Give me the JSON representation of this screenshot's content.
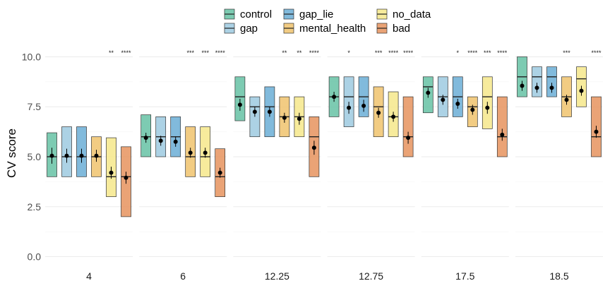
{
  "chart_data": {
    "type": "boxplot",
    "ylabel": "CV score",
    "ylim": [
      -0.3,
      10.3
    ],
    "yticks": [
      0,
      2.5,
      5,
      7.5,
      10
    ],
    "ytick_labels": [
      "0.0",
      "2.5",
      "5.0",
      "7.5",
      "10.0"
    ],
    "legend": {
      "position": "top"
    },
    "series": [
      {
        "name": "control",
        "color": "#66C2A5"
      },
      {
        "name": "gap",
        "color": "#9ECAE1"
      },
      {
        "name": "gap_lie",
        "color": "#6BAED6"
      },
      {
        "name": "mental_health",
        "color": "#F0C36D"
      },
      {
        "name": "no_data",
        "color": "#F6E88B"
      },
      {
        "name": "bad",
        "color": "#E6935E"
      }
    ],
    "facets": [
      {
        "label": "4",
        "boxes": [
          {
            "q1": 4.0,
            "median": 5.0,
            "q3": 6.2,
            "mean": 5.05,
            "ci": [
              4.65,
              5.45
            ],
            "sig": ""
          },
          {
            "q1": 4.0,
            "median": 5.0,
            "q3": 6.5,
            "mean": 5.05,
            "ci": [
              4.7,
              5.4
            ],
            "sig": ""
          },
          {
            "q1": 4.0,
            "median": 5.0,
            "q3": 6.5,
            "mean": 5.05,
            "ci": [
              4.7,
              5.4
            ],
            "sig": ""
          },
          {
            "q1": 4.0,
            "median": 5.0,
            "q3": 6.0,
            "mean": 5.05,
            "ci": [
              4.75,
              5.35
            ],
            "sig": ""
          },
          {
            "q1": 3.0,
            "median": 4.0,
            "q3": 5.95,
            "mean": 4.2,
            "ci": [
              3.9,
              4.5
            ],
            "sig": "**"
          },
          {
            "q1": 2.0,
            "median": 4.0,
            "q3": 5.5,
            "mean": 3.95,
            "ci": [
              3.65,
              4.25
            ],
            "sig": "****"
          }
        ]
      },
      {
        "label": "6",
        "boxes": [
          {
            "q1": 5.0,
            "median": 6.0,
            "q3": 7.1,
            "mean": 5.95,
            "ci": [
              5.7,
              6.2
            ],
            "sig": ""
          },
          {
            "q1": 5.0,
            "median": 6.0,
            "q3": 7.0,
            "mean": 5.8,
            "ci": [
              5.55,
              6.05
            ],
            "sig": ""
          },
          {
            "q1": 5.0,
            "median": 6.0,
            "q3": 7.0,
            "mean": 5.75,
            "ci": [
              5.5,
              6.0
            ],
            "sig": ""
          },
          {
            "q1": 4.0,
            "median": 5.0,
            "q3": 6.5,
            "mean": 5.2,
            "ci": [
              4.95,
              5.45
            ],
            "sig": "***"
          },
          {
            "q1": 4.0,
            "median": 5.0,
            "q3": 6.5,
            "mean": 5.2,
            "ci": [
              4.95,
              5.45
            ],
            "sig": "***"
          },
          {
            "q1": 3.0,
            "median": 4.0,
            "q3": 5.4,
            "mean": 4.2,
            "ci": [
              3.95,
              4.45
            ],
            "sig": "****"
          }
        ]
      },
      {
        "label": "12.25",
        "boxes": [
          {
            "q1": 6.8,
            "median": 8.0,
            "q3": 9.0,
            "mean": 7.6,
            "ci": [
              7.3,
              7.9
            ],
            "sig": ""
          },
          {
            "q1": 6.0,
            "median": 7.5,
            "q3": 8.0,
            "mean": 7.25,
            "ci": [
              7.0,
              7.5
            ],
            "sig": ""
          },
          {
            "q1": 6.0,
            "median": 7.5,
            "q3": 8.5,
            "mean": 7.25,
            "ci": [
              7.0,
              7.5
            ],
            "sig": ""
          },
          {
            "q1": 6.0,
            "median": 7.0,
            "q3": 8.0,
            "mean": 6.95,
            "ci": [
              6.7,
              7.2
            ],
            "sig": "**"
          },
          {
            "q1": 6.0,
            "median": 7.0,
            "q3": 8.0,
            "mean": 6.9,
            "ci": [
              6.6,
              7.2
            ],
            "sig": "**"
          },
          {
            "q1": 4.0,
            "median": 6.0,
            "q3": 7.0,
            "mean": 5.45,
            "ci": [
              5.1,
              5.8
            ],
            "sig": "****"
          }
        ]
      },
      {
        "label": "12.75",
        "boxes": [
          {
            "q1": 7.0,
            "median": 8.0,
            "q3": 9.0,
            "mean": 8.0,
            "ci": [
              7.75,
              8.25
            ],
            "sig": ""
          },
          {
            "q1": 6.5,
            "median": 8.0,
            "q3": 9.0,
            "mean": 7.45,
            "ci": [
              7.15,
              7.75
            ],
            "sig": "*"
          },
          {
            "q1": 7.0,
            "median": 8.0,
            "q3": 9.0,
            "mean": 7.55,
            "ci": [
              7.25,
              7.85
            ],
            "sig": ""
          },
          {
            "q1": 6.0,
            "median": 7.5,
            "q3": 8.5,
            "mean": 7.2,
            "ci": [
              6.95,
              7.45
            ],
            "sig": "***"
          },
          {
            "q1": 6.0,
            "median": 7.0,
            "q3": 8.25,
            "mean": 7.0,
            "ci": [
              6.75,
              7.25
            ],
            "sig": "****"
          },
          {
            "q1": 5.0,
            "median": 6.0,
            "q3": 8.0,
            "mean": 5.95,
            "ci": [
              5.65,
              6.25
            ],
            "sig": "****"
          }
        ]
      },
      {
        "label": "17.5",
        "boxes": [
          {
            "q1": 7.2,
            "median": 8.5,
            "q3": 9.0,
            "mean": 8.2,
            "ci": [
              7.95,
              8.45
            ],
            "sig": ""
          },
          {
            "q1": 7.0,
            "median": 8.0,
            "q3": 9.0,
            "mean": 7.85,
            "ci": [
              7.6,
              8.1
            ],
            "sig": ""
          },
          {
            "q1": 7.0,
            "median": 8.0,
            "q3": 9.0,
            "mean": 7.65,
            "ci": [
              7.4,
              7.9
            ],
            "sig": "*"
          },
          {
            "q1": 6.5,
            "median": 7.5,
            "q3": 8.0,
            "mean": 7.35,
            "ci": [
              7.1,
              7.6
            ],
            "sig": "****"
          },
          {
            "q1": 6.4,
            "median": 8.0,
            "q3": 9.0,
            "mean": 7.45,
            "ci": [
              7.15,
              7.75
            ],
            "sig": "***"
          },
          {
            "q1": 5.0,
            "median": 6.0,
            "q3": 8.0,
            "mean": 6.1,
            "ci": [
              5.8,
              6.4
            ],
            "sig": "****"
          }
        ]
      },
      {
        "label": "18.5",
        "boxes": [
          {
            "q1": 8.0,
            "median": 9.0,
            "q3": 10.0,
            "mean": 8.55,
            "ci": [
              8.3,
              8.8
            ],
            "sig": ""
          },
          {
            "q1": 8.0,
            "median": 9.0,
            "q3": 9.5,
            "mean": 8.45,
            "ci": [
              8.2,
              8.7
            ],
            "sig": ""
          },
          {
            "q1": 8.0,
            "median": 9.0,
            "q3": 9.5,
            "mean": 8.45,
            "ci": [
              8.2,
              8.7
            ],
            "sig": ""
          },
          {
            "q1": 7.0,
            "median": 8.0,
            "q3": 9.0,
            "mean": 7.85,
            "ci": [
              7.6,
              8.1
            ],
            "sig": "***"
          },
          {
            "q1": 7.5,
            "median": 8.9,
            "q3": 9.5,
            "mean": 8.3,
            "ci": [
              8.05,
              8.55
            ],
            "sig": ""
          },
          {
            "q1": 5.0,
            "median": 6.0,
            "q3": 8.0,
            "mean": 6.25,
            "ci": [
              5.95,
              6.55
            ],
            "sig": "****"
          }
        ]
      }
    ]
  }
}
